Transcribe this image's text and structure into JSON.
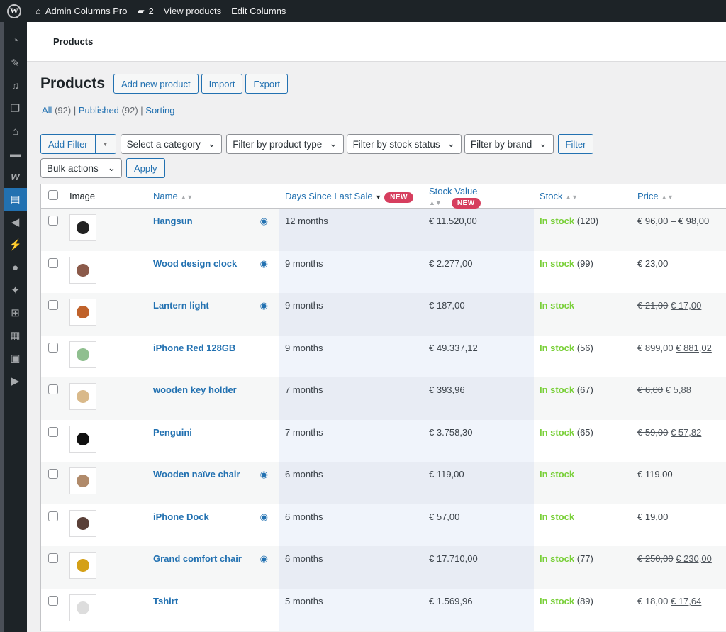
{
  "topbar": {
    "site": "Admin Columns Pro",
    "comments": "2",
    "view": "View products",
    "edit": "Edit Columns"
  },
  "header": {
    "title": "Products"
  },
  "page": {
    "title": "Products",
    "add_new": "Add new product",
    "import": "Import",
    "export": "Export"
  },
  "views": [
    {
      "label": "All",
      "count": "(92)"
    },
    {
      "label": "Published",
      "count": "(92)"
    },
    {
      "label": "Sorting",
      "count": ""
    }
  ],
  "filters": {
    "add_filter": "Add Filter",
    "category": "Select a category",
    "type": "Filter by product type",
    "stock": "Filter by stock status",
    "brand": "Filter by brand",
    "filter": "Filter",
    "bulk": "Bulk actions",
    "apply": "Apply"
  },
  "columns": {
    "image": "Image",
    "name": "Name",
    "days": "Days Since Last Sale",
    "stock_value": "Stock Value",
    "stock": "Stock",
    "price": "Price",
    "new_badge": "NEW"
  },
  "rows": [
    {
      "name": "Hangsun",
      "eye": true,
      "days": "12 months",
      "value": "€ 11.520,00",
      "stock": "In stock",
      "qty": "(120)",
      "price": "€ 96,00 – € 98,00",
      "old": "",
      "sale": "",
      "img": "#222"
    },
    {
      "name": "Wood design clock",
      "eye": true,
      "days": "9 months",
      "value": "€ 2.277,00",
      "stock": "In stock",
      "qty": "(99)",
      "price": "€ 23,00",
      "old": "",
      "sale": "",
      "img": "#8b5a4a"
    },
    {
      "name": "Lantern light",
      "eye": true,
      "days": "9 months",
      "value": "€ 187,00",
      "stock": "In stock",
      "qty": "",
      "price": "",
      "old": "€ 21,00",
      "sale": "€ 17,00",
      "img": "#c0622a"
    },
    {
      "name": "iPhone Red 128GB",
      "eye": false,
      "days": "9 months",
      "value": "€ 49.337,12",
      "stock": "In stock",
      "qty": "(56)",
      "price": "",
      "old": "€ 899,00",
      "sale": "€ 881,02",
      "img": "#8fbf8f"
    },
    {
      "name": "wooden key holder",
      "eye": false,
      "days": "7 months",
      "value": "€ 393,96",
      "stock": "In stock",
      "qty": "(67)",
      "price": "",
      "old": "€ 6,00",
      "sale": "€ 5,88",
      "img": "#d9b98a"
    },
    {
      "name": "Penguini",
      "eye": false,
      "days": "7 months",
      "value": "€ 3.758,30",
      "stock": "In stock",
      "qty": "(65)",
      "price": "",
      "old": "€ 59,00",
      "sale": "€ 57,82",
      "img": "#111"
    },
    {
      "name": "Wooden naïve chair",
      "eye": true,
      "days": "6 months",
      "value": "€ 119,00",
      "stock": "In stock",
      "qty": "",
      "price": "€ 119,00",
      "old": "",
      "sale": "",
      "img": "#b08a6a"
    },
    {
      "name": "iPhone Dock",
      "eye": true,
      "days": "6 months",
      "value": "€ 57,00",
      "stock": "In stock",
      "qty": "",
      "price": "€ 19,00",
      "old": "",
      "sale": "",
      "img": "#5a4038"
    },
    {
      "name": "Grand comfort chair",
      "eye": true,
      "days": "6 months",
      "value": "€ 17.710,00",
      "stock": "In stock",
      "qty": "(77)",
      "price": "",
      "old": "€ 250,00",
      "sale": "€ 230,00",
      "img": "#d4a017"
    },
    {
      "name": "Tshirt",
      "eye": false,
      "days": "5 months",
      "value": "€ 1.569,96",
      "stock": "In stock",
      "qty": "(89)",
      "price": "",
      "old": "€ 18,00",
      "sale": "€ 17,64",
      "img": "#ddd"
    }
  ]
}
